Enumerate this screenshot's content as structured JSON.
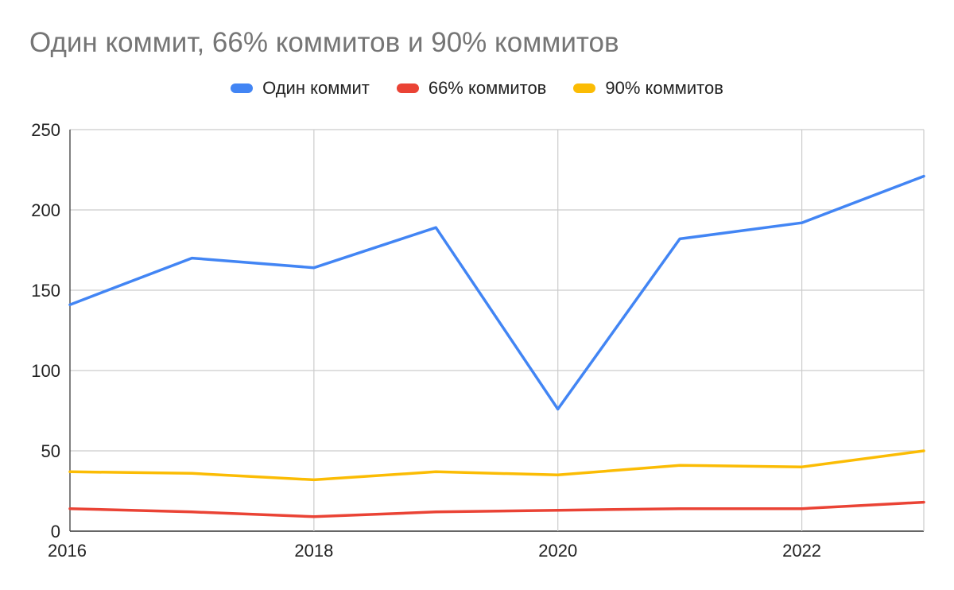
{
  "chart_data": {
    "type": "line",
    "title": "Один коммит, 66% коммитов и 90% коммитов",
    "xlabel": "",
    "ylabel": "",
    "x": [
      2016,
      2017,
      2018,
      2019,
      2020,
      2021,
      2022,
      2023
    ],
    "xlim": [
      2016,
      2023
    ],
    "x_ticks": [
      "2016",
      "2018",
      "2020",
      "2022"
    ],
    "ylim": [
      0,
      250
    ],
    "y_ticks": [
      "0",
      "50",
      "100",
      "150",
      "200",
      "250"
    ],
    "grid": true,
    "legend_position": "top",
    "series": [
      {
        "name": "Один коммит",
        "color": "#4285f4",
        "values": [
          141,
          170,
          164,
          189,
          76,
          182,
          192,
          221
        ]
      },
      {
        "name": "66% коммитов",
        "color": "#ea4335",
        "values": [
          14,
          12,
          9,
          12,
          13,
          14,
          14,
          18
        ]
      },
      {
        "name": "90% коммитов",
        "color": "#fbbc04",
        "values": [
          37,
          36,
          32,
          37,
          35,
          41,
          40,
          50
        ]
      }
    ]
  }
}
